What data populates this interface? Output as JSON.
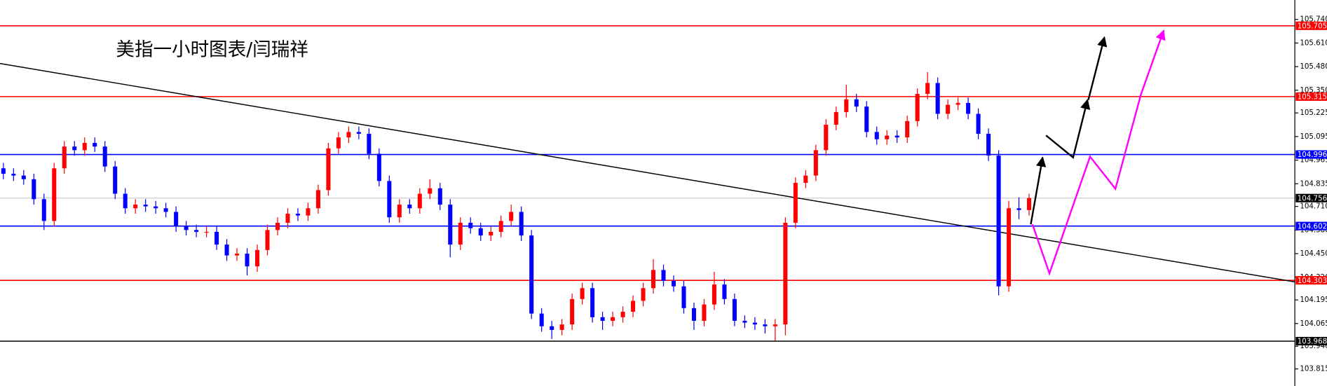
{
  "chart_data": {
    "type": "candlestick",
    "title": "美指一小时图表/闫瑞祥",
    "up_color": "#ff0000",
    "down_color": "#0000ff",
    "ylim": [
      103.721,
      105.847
    ],
    "yticks": [
      {
        "value": 105.74,
        "label": "105.740"
      },
      {
        "value": 105.61,
        "label": "105.610"
      },
      {
        "value": 105.48,
        "label": "105.480"
      },
      {
        "value": 105.35,
        "label": "105.350"
      },
      105.225,
      105.095,
      104.965,
      104.835,
      {
        "value": 104.71,
        "label": "104.710"
      },
      {
        "value": 104.58,
        "label": "104.580"
      },
      {
        "value": 104.45,
        "label": "104.450"
      },
      {
        "value": 104.32,
        "label": "104.320"
      },
      104.195,
      104.065,
      {
        "value": 103.94,
        "label": "103.940"
      },
      103.815
    ],
    "levels": [
      {
        "value": 105.705,
        "color": "#ff0000"
      },
      {
        "value": 105.315,
        "color": "#ff0000"
      },
      {
        "value": 104.996,
        "color": "#0000ff"
      },
      {
        "value": 104.756,
        "color": "#c0c0c0",
        "label_color": "#000000"
      },
      {
        "value": 104.602,
        "color": "#0000ff"
      },
      {
        "value": 104.303,
        "color": "#ff0000"
      },
      {
        "value": 103.968,
        "color": "#000000"
      }
    ],
    "candles": [
      [
        104.92,
        104.95,
        104.86,
        104.89
      ],
      [
        104.89,
        104.92,
        104.85,
        104.88
      ],
      [
        104.88,
        104.91,
        104.83,
        104.86
      ],
      [
        104.86,
        104.89,
        104.72,
        104.75
      ],
      [
        104.75,
        104.78,
        104.58,
        104.63
      ],
      [
        104.63,
        104.95,
        104.6,
        104.92
      ],
      [
        104.92,
        105.07,
        104.89,
        105.04
      ],
      [
        105.04,
        105.07,
        104.99,
        105.02
      ],
      [
        105.02,
        105.09,
        104.99,
        105.06
      ],
      [
        105.06,
        105.09,
        105.01,
        105.04
      ],
      [
        105.04,
        105.07,
        104.9,
        104.93
      ],
      [
        104.93,
        104.96,
        104.75,
        104.78
      ],
      [
        104.78,
        104.81,
        104.67,
        104.7
      ],
      [
        104.7,
        104.75,
        104.67,
        104.72
      ],
      [
        104.72,
        104.75,
        104.68,
        104.71
      ],
      [
        104.71,
        104.74,
        104.67,
        104.7
      ],
      [
        104.7,
        104.73,
        104.65,
        104.68
      ],
      [
        104.68,
        104.71,
        104.57,
        104.6
      ],
      [
        104.6,
        104.63,
        104.55,
        104.58
      ],
      [
        104.58,
        104.61,
        104.54,
        104.57
      ],
      [
        104.57,
        104.6,
        104.54,
        104.57
      ],
      [
        104.57,
        104.6,
        104.47,
        104.5
      ],
      [
        104.5,
        104.53,
        104.41,
        104.44
      ],
      [
        104.44,
        104.48,
        104.41,
        104.45
      ],
      [
        104.45,
        104.48,
        104.33,
        104.38
      ],
      [
        104.38,
        104.5,
        104.35,
        104.47
      ],
      [
        104.47,
        104.61,
        104.44,
        104.58
      ],
      [
        104.58,
        104.65,
        104.55,
        104.62
      ],
      [
        104.62,
        104.7,
        104.59,
        104.67
      ],
      [
        104.67,
        104.7,
        104.63,
        104.66
      ],
      [
        104.66,
        104.73,
        104.63,
        104.7
      ],
      [
        104.7,
        104.83,
        104.67,
        104.8
      ],
      [
        104.8,
        105.06,
        104.77,
        105.03
      ],
      [
        105.03,
        105.12,
        105.0,
        105.09
      ],
      [
        105.09,
        105.15,
        105.06,
        105.12
      ],
      [
        105.12,
        105.15,
        105.08,
        105.11
      ],
      [
        105.11,
        105.14,
        104.97,
        105.0
      ],
      [
        105.0,
        105.03,
        104.82,
        104.85
      ],
      [
        104.85,
        104.88,
        104.62,
        104.65
      ],
      [
        104.65,
        104.75,
        104.62,
        104.72
      ],
      [
        104.72,
        104.75,
        104.67,
        104.7
      ],
      [
        104.7,
        104.81,
        104.67,
        104.78
      ],
      [
        104.78,
        104.86,
        104.75,
        104.81
      ],
      [
        104.81,
        104.84,
        104.69,
        104.72
      ],
      [
        104.72,
        104.75,
        104.43,
        104.5
      ],
      [
        104.5,
        104.65,
        104.47,
        104.62
      ],
      [
        104.62,
        104.65,
        104.56,
        104.59
      ],
      [
        104.59,
        104.62,
        104.52,
        104.55
      ],
      [
        104.55,
        104.6,
        104.52,
        104.57
      ],
      [
        104.57,
        104.66,
        104.54,
        104.63
      ],
      [
        104.63,
        104.72,
        104.6,
        104.68
      ],
      [
        104.68,
        104.71,
        104.52,
        104.55
      ],
      [
        104.55,
        104.58,
        104.09,
        104.12
      ],
      [
        104.12,
        104.15,
        104.02,
        104.05
      ],
      [
        104.05,
        104.08,
        103.98,
        104.03
      ],
      [
        104.03,
        104.09,
        104.0,
        104.06
      ],
      [
        104.06,
        104.23,
        104.03,
        104.2
      ],
      [
        104.2,
        104.29,
        104.17,
        104.26
      ],
      [
        104.26,
        104.29,
        104.07,
        104.1
      ],
      [
        104.1,
        104.13,
        104.03,
        104.08
      ],
      [
        104.08,
        104.13,
        104.05,
        104.1
      ],
      [
        104.1,
        104.16,
        104.07,
        104.13
      ],
      [
        104.13,
        104.22,
        104.1,
        104.19
      ],
      [
        104.19,
        104.29,
        104.16,
        104.26
      ],
      [
        104.26,
        104.42,
        104.23,
        104.36
      ],
      [
        104.36,
        104.39,
        104.27,
        104.3
      ],
      [
        104.3,
        104.33,
        104.24,
        104.27
      ],
      [
        104.27,
        104.3,
        104.12,
        104.15
      ],
      [
        104.15,
        104.18,
        104.03,
        104.08
      ],
      [
        104.08,
        104.2,
        104.05,
        104.17
      ],
      [
        104.17,
        104.35,
        104.14,
        104.28
      ],
      [
        104.28,
        104.31,
        104.17,
        104.2
      ],
      [
        104.2,
        104.23,
        104.05,
        104.08
      ],
      [
        104.08,
        104.11,
        104.04,
        104.07
      ],
      [
        104.07,
        104.1,
        104.03,
        104.06
      ],
      [
        104.06,
        104.09,
        104.01,
        104.05
      ],
      [
        104.05,
        104.09,
        103.97,
        104.06
      ],
      [
        104.06,
        104.65,
        104.0,
        104.62
      ],
      [
        104.62,
        104.87,
        104.59,
        104.84
      ],
      [
        104.84,
        104.91,
        104.81,
        104.88
      ],
      [
        104.88,
        105.05,
        104.85,
        105.02
      ],
      [
        105.02,
        105.19,
        104.99,
        105.16
      ],
      [
        105.16,
        105.26,
        105.13,
        105.23
      ],
      [
        105.23,
        105.38,
        105.2,
        105.3
      ],
      [
        105.3,
        105.33,
        105.23,
        105.26
      ],
      [
        105.26,
        105.29,
        105.09,
        105.12
      ],
      [
        105.12,
        105.15,
        105.05,
        105.08
      ],
      [
        105.08,
        105.13,
        105.05,
        105.1
      ],
      [
        105.1,
        105.13,
        105.06,
        105.09
      ],
      [
        105.09,
        105.21,
        105.06,
        105.18
      ],
      [
        105.18,
        105.36,
        105.15,
        105.33
      ],
      [
        105.33,
        105.45,
        105.3,
        105.39
      ],
      [
        105.39,
        105.42,
        105.19,
        105.22
      ],
      [
        105.22,
        105.3,
        105.19,
        105.27
      ],
      [
        105.27,
        105.31,
        105.24,
        105.28
      ],
      [
        105.28,
        105.31,
        105.19,
        105.22
      ],
      [
        105.22,
        105.25,
        105.08,
        105.11
      ],
      [
        105.11,
        105.14,
        104.96,
        104.99
      ],
      [
        104.99,
        105.02,
        104.22,
        104.27
      ],
      [
        104.27,
        104.74,
        104.24,
        104.7
      ],
      [
        104.7,
        104.76,
        104.64,
        104.69
      ],
      [
        104.69,
        104.78,
        104.66,
        104.756
      ]
    ]
  }
}
